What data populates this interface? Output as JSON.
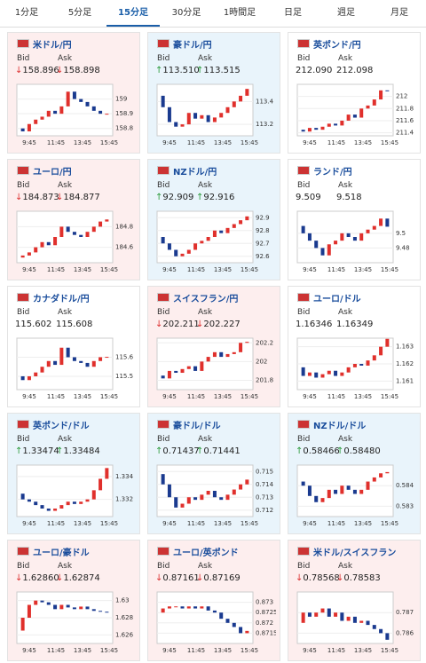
{
  "tabs": [
    "1分足",
    "5分足",
    "15分足",
    "30分足",
    "1時間足",
    "日足",
    "週足",
    "月足"
  ],
  "active_tab": 2,
  "bid_label": "Bid",
  "ask_label": "Ask",
  "x_labels": [
    "9:45",
    "11:45",
    "13:45",
    "15:45"
  ],
  "tiles": [
    {
      "title": "米ドル/円",
      "direction": "down",
      "bid": "158.896",
      "ask": "158.898",
      "ylim": [
        158.75,
        159.1
      ],
      "yticks": [
        158.8,
        158.9,
        159
      ],
      "closes": [
        158.8,
        158.78,
        158.83,
        158.86,
        158.88,
        158.92,
        158.9,
        158.95,
        159.05,
        159.0,
        158.98,
        158.95,
        158.92,
        158.9,
        158.9
      ]
    },
    {
      "title": "豪ドル/円",
      "direction": "up",
      "bid": "113.510",
      "ask": "113.515",
      "ylim": [
        113.1,
        113.55
      ],
      "yticks": [
        113.2,
        113.4
      ],
      "closes": [
        113.45,
        113.35,
        113.22,
        113.18,
        113.2,
        113.3,
        113.25,
        113.28,
        113.22,
        113.26,
        113.3,
        113.35,
        113.4,
        113.45,
        113.51
      ]
    },
    {
      "title": "英ポンド/円",
      "direction": "none",
      "bid": "212.090",
      "ask": "212.098",
      "ylim": [
        211.35,
        212.2
      ],
      "yticks": [
        211.4,
        211.6,
        211.8,
        212
      ],
      "closes": [
        211.45,
        211.42,
        211.48,
        211.45,
        211.5,
        211.55,
        211.52,
        211.6,
        211.7,
        211.65,
        211.8,
        211.85,
        211.95,
        212.1,
        212.09
      ]
    },
    {
      "title": "ユーロ/円",
      "direction": "down",
      "bid": "184.873",
      "ask": "184.877",
      "ylim": [
        184.45,
        184.95
      ],
      "yticks": [
        184.6,
        184.8
      ],
      "closes": [
        184.5,
        184.52,
        184.55,
        184.6,
        184.65,
        184.62,
        184.7,
        184.8,
        184.75,
        184.72,
        184.7,
        184.75,
        184.8,
        184.85,
        184.87
      ]
    },
    {
      "title": "NZドル/円",
      "direction": "up",
      "bid": "92.909",
      "ask": "92.916",
      "ylim": [
        92.55,
        92.95
      ],
      "yticks": [
        92.6,
        92.7,
        92.8,
        92.9
      ],
      "closes": [
        92.75,
        92.7,
        92.65,
        92.6,
        92.62,
        92.65,
        92.7,
        92.72,
        92.75,
        92.8,
        92.78,
        92.82,
        92.85,
        92.88,
        92.91
      ]
    },
    {
      "title": "ランド/円",
      "direction": "none",
      "bid": "9.509",
      "ask": "9.518",
      "ylim": [
        9.46,
        9.53
      ],
      "yticks": [
        9.48,
        9.5
      ],
      "closes": [
        9.51,
        9.5,
        9.49,
        9.48,
        9.47,
        9.485,
        9.49,
        9.5,
        9.495,
        9.49,
        9.5,
        9.505,
        9.51,
        9.52,
        9.509
      ]
    },
    {
      "title": "カナダドル/円",
      "direction": "none",
      "bid": "115.602",
      "ask": "115.608",
      "ylim": [
        115.43,
        115.7
      ],
      "yticks": [
        115.5,
        115.6
      ],
      "closes": [
        115.5,
        115.48,
        115.5,
        115.52,
        115.55,
        115.58,
        115.56,
        115.65,
        115.6,
        115.58,
        115.57,
        115.55,
        115.58,
        115.6,
        115.602
      ]
    },
    {
      "title": "スイスフラン/円",
      "direction": "down",
      "bid": "202.211",
      "ask": "202.227",
      "ylim": [
        201.7,
        202.25
      ],
      "yticks": [
        201.8,
        202,
        202.2
      ],
      "closes": [
        201.85,
        201.82,
        201.9,
        201.88,
        201.92,
        201.95,
        201.9,
        202,
        202.05,
        202.1,
        202.05,
        202.08,
        202.1,
        202.2,
        202.211
      ]
    },
    {
      "title": "ユーロ/ドル",
      "direction": "none",
      "bid": "1.16346",
      "ask": "1.16349",
      "ylim": [
        1.1605,
        1.1635
      ],
      "yticks": [
        1.161,
        1.162,
        1.163
      ],
      "closes": [
        1.1618,
        1.1613,
        1.1615,
        1.1612,
        1.1614,
        1.1616,
        1.1613,
        1.1615,
        1.1618,
        1.162,
        1.1619,
        1.1622,
        1.1625,
        1.163,
        1.16346
      ]
    },
    {
      "title": "英ポンド/ドル",
      "direction": "up",
      "bid": "1.33474",
      "ask": "1.33484",
      "ylim": [
        1.3305,
        1.335
      ],
      "yticks": [
        1.332,
        1.334
      ],
      "closes": [
        1.3325,
        1.332,
        1.3318,
        1.3315,
        1.3312,
        1.331,
        1.3312,
        1.3315,
        1.3318,
        1.3316,
        1.3318,
        1.332,
        1.3328,
        1.3338,
        1.33474
      ]
    },
    {
      "title": "豪ドル/ドル",
      "direction": "up",
      "bid": "0.71437",
      "ask": "0.71441",
      "ylim": [
        0.7115,
        0.7155
      ],
      "yticks": [
        0.712,
        0.713,
        0.714,
        0.715
      ],
      "closes": [
        0.7148,
        0.714,
        0.713,
        0.7122,
        0.7125,
        0.713,
        0.7128,
        0.7132,
        0.7135,
        0.713,
        0.7128,
        0.7132,
        0.7136,
        0.714,
        0.71437
      ]
    },
    {
      "title": "NZドル/ドル",
      "direction": "up",
      "bid": "0.58466",
      "ask": "0.58480",
      "ylim": [
        0.5825,
        0.585
      ],
      "yticks": [
        0.583,
        0.584
      ],
      "closes": [
        0.5842,
        0.584,
        0.5835,
        0.5832,
        0.5834,
        0.5838,
        0.5836,
        0.584,
        0.5838,
        0.5836,
        0.5838,
        0.5842,
        0.5844,
        0.5846,
        0.58466
      ]
    },
    {
      "title": "ユーロ/豪ドル",
      "direction": "down",
      "bid": "1.62860",
      "ask": "1.62874",
      "ylim": [
        1.625,
        1.631
      ],
      "yticks": [
        1.626,
        1.628,
        1.63
      ],
      "closes": [
        1.6265,
        1.628,
        1.6295,
        1.63,
        1.6298,
        1.6295,
        1.629,
        1.6295,
        1.6292,
        1.629,
        1.6293,
        1.629,
        1.6288,
        1.6287,
        1.6286
      ]
    },
    {
      "title": "ユーロ/英ポンド",
      "direction": "down",
      "bid": "0.87161",
      "ask": "0.87169",
      "ylim": [
        0.871,
        0.8735
      ],
      "yticks": [
        0.8715,
        0.872,
        0.8725,
        0.873
      ],
      "closes": [
        0.8725,
        0.8727,
        0.8728,
        0.8728,
        0.8727,
        0.8728,
        0.8727,
        0.8728,
        0.8726,
        0.8725,
        0.8722,
        0.872,
        0.8718,
        0.8715,
        0.87161
      ]
    },
    {
      "title": "米ドル/スイスフラン",
      "direction": "down",
      "bid": "0.78568",
      "ask": "0.78583",
      "ylim": [
        0.7855,
        0.788
      ],
      "yticks": [
        0.786,
        0.787
      ],
      "closes": [
        0.7865,
        0.787,
        0.7868,
        0.787,
        0.7872,
        0.7868,
        0.787,
        0.7866,
        0.7868,
        0.7865,
        0.7866,
        0.7864,
        0.7862,
        0.786,
        0.78568
      ]
    }
  ]
}
